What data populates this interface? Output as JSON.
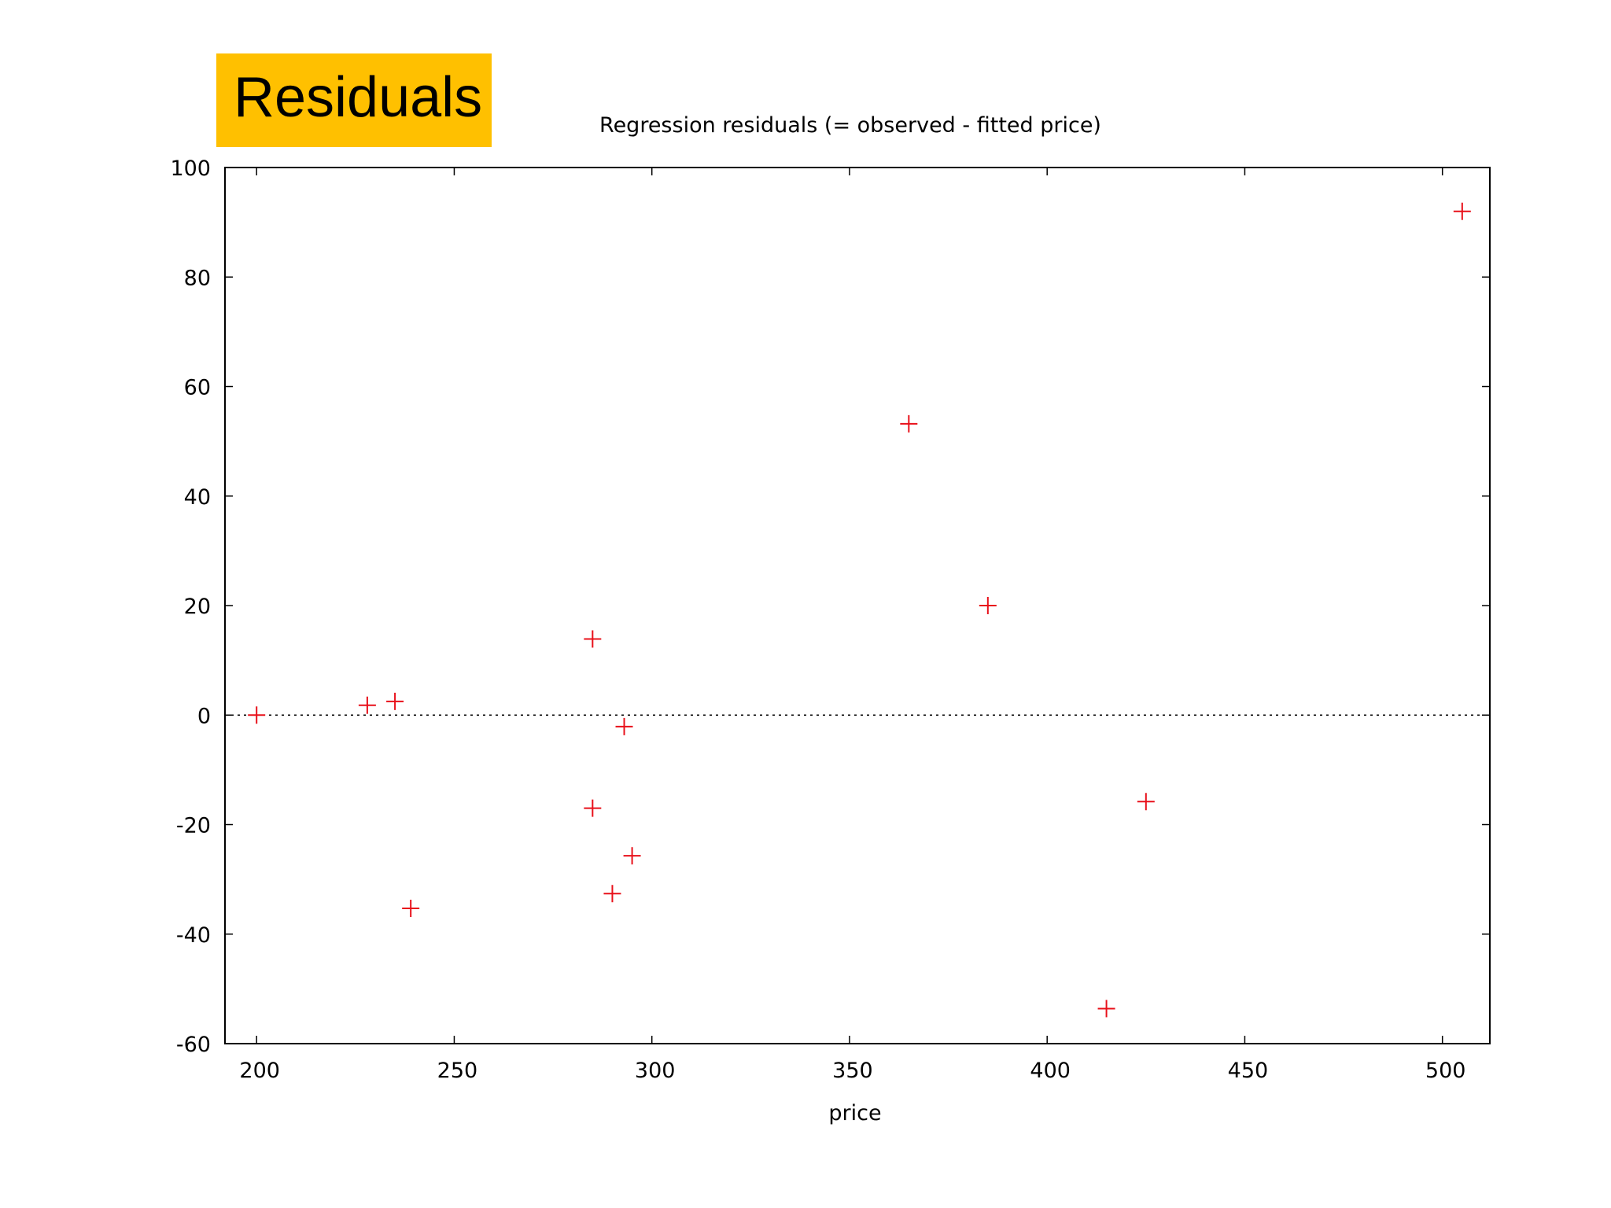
{
  "slide": {
    "title": "Residuals",
    "title_background": "#ffc000"
  },
  "chart_data": {
    "type": "scatter",
    "title": "Regression residuals (= observed - fitted price)",
    "xlabel": "price",
    "ylabel": "",
    "xlim": [
      192,
      512
    ],
    "ylim": [
      -60,
      100
    ],
    "xticks": [
      200,
      250,
      300,
      350,
      400,
      450,
      500
    ],
    "yticks": [
      -60,
      -40,
      -20,
      0,
      20,
      40,
      60,
      80,
      100
    ],
    "marker": "plus",
    "marker_color": "#e8101a",
    "zero_line": true,
    "zero_line_style": "dotted",
    "grid": false,
    "series": [
      {
        "x": [
          200,
          228,
          235,
          239,
          285,
          285,
          290,
          293,
          295,
          365,
          385,
          415,
          425,
          505
        ],
        "y": [
          0,
          1.8,
          2.5,
          -35.3,
          13.9,
          -17.0,
          -32.6,
          -2.1,
          -25.7,
          53.2,
          20.0,
          -53.6,
          -15.8,
          92.0
        ]
      }
    ]
  }
}
